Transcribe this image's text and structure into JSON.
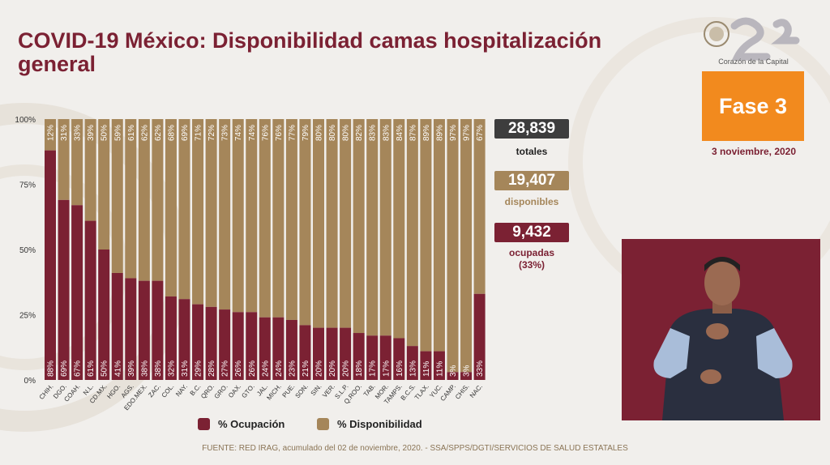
{
  "title": "COVID-19 México: Disponibilidad camas hospitalización general",
  "logo_text": "CAPITAL 21",
  "logo_subtitle": "Corazón de la Capital",
  "phase": "Fase 3",
  "date": "3 noviembre, 2020",
  "stats": {
    "total_value": "28,839",
    "total_label": "totales",
    "available_value": "19,407",
    "available_label": "disponibles",
    "occupied_value": "9,432",
    "occupied_label": "ocupadas",
    "occupied_pct": "(33%)"
  },
  "legend": {
    "occupancy": "% Ocupación",
    "availability": "% Disponibilidad"
  },
  "footer": "FUENTE: RED IRAG, acumulado del 02 de noviembre, 2020. -   SSA/SPPS/DGTI/SERVICIOS DE SALUD ESTATALES",
  "colors": {
    "occupancy": "#7b2133",
    "availability": "#a5865a",
    "phase": "#f28a1e",
    "total_box": "#3d3d3d"
  },
  "chart_data": {
    "type": "bar",
    "stacked": true,
    "categories": [
      "CHIH.",
      "DGO.",
      "COAH.",
      "N.L.",
      "CD.MX.",
      "HGO.",
      "AGS.",
      "EDO.MEX.",
      "ZAC.",
      "COL.",
      "NAY.",
      "B.C.",
      "QRO.",
      "GRO.",
      "OAX.",
      "GTO.",
      "JAL.",
      "MICH.",
      "PUE.",
      "SON.",
      "SIN.",
      "VER.",
      "S.L.P.",
      "Q.ROO.",
      "TAB.",
      "MOR.",
      "TAMPS.",
      "B.C.S.",
      "TLAX.",
      "YUC.",
      "CAMP.",
      "CHIS.",
      "NAC."
    ],
    "series": [
      {
        "name": "% Ocupación",
        "values": [
          88,
          69,
          67,
          61,
          50,
          41,
          39,
          38,
          38,
          32,
          31,
          29,
          28,
          27,
          26,
          26,
          24,
          24,
          23,
          21,
          20,
          20,
          20,
          18,
          17,
          17,
          16,
          13,
          11,
          11,
          3,
          3,
          33
        ]
      },
      {
        "name": "% Disponibilidad",
        "values": [
          12,
          31,
          33,
          39,
          50,
          59,
          61,
          62,
          62,
          68,
          69,
          71,
          72,
          73,
          74,
          74,
          76,
          76,
          77,
          79,
          80,
          80,
          80,
          82,
          83,
          83,
          84,
          87,
          89,
          89,
          97,
          97,
          67
        ]
      }
    ],
    "ylim": [
      0,
      100
    ],
    "yticks": [
      "0%",
      "25%",
      "50%",
      "75%",
      "100%"
    ],
    "legend_position": "bottom"
  }
}
